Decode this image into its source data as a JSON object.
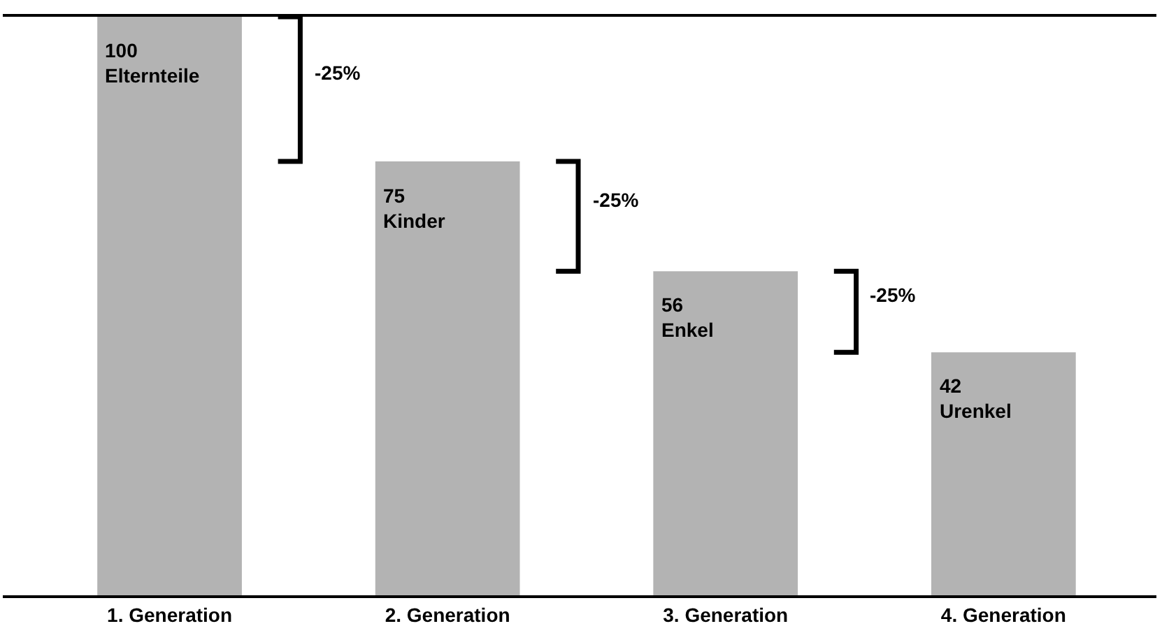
{
  "chart_data": {
    "type": "bar",
    "categories": [
      "1. Generation",
      "2. Generation",
      "3. Generation",
      "4. Generation"
    ],
    "values": [
      100,
      75,
      56,
      42
    ],
    "color": "#b3b3b3",
    "value_labels": [
      "100\nElternteile",
      "75\nKinder",
      "56\nEnkel",
      "42\nUrenkel"
    ],
    "annotations": [
      "-25%",
      "-25%",
      "-25%"
    ],
    "ylim": [
      0,
      100
    ],
    "legend": false
  }
}
